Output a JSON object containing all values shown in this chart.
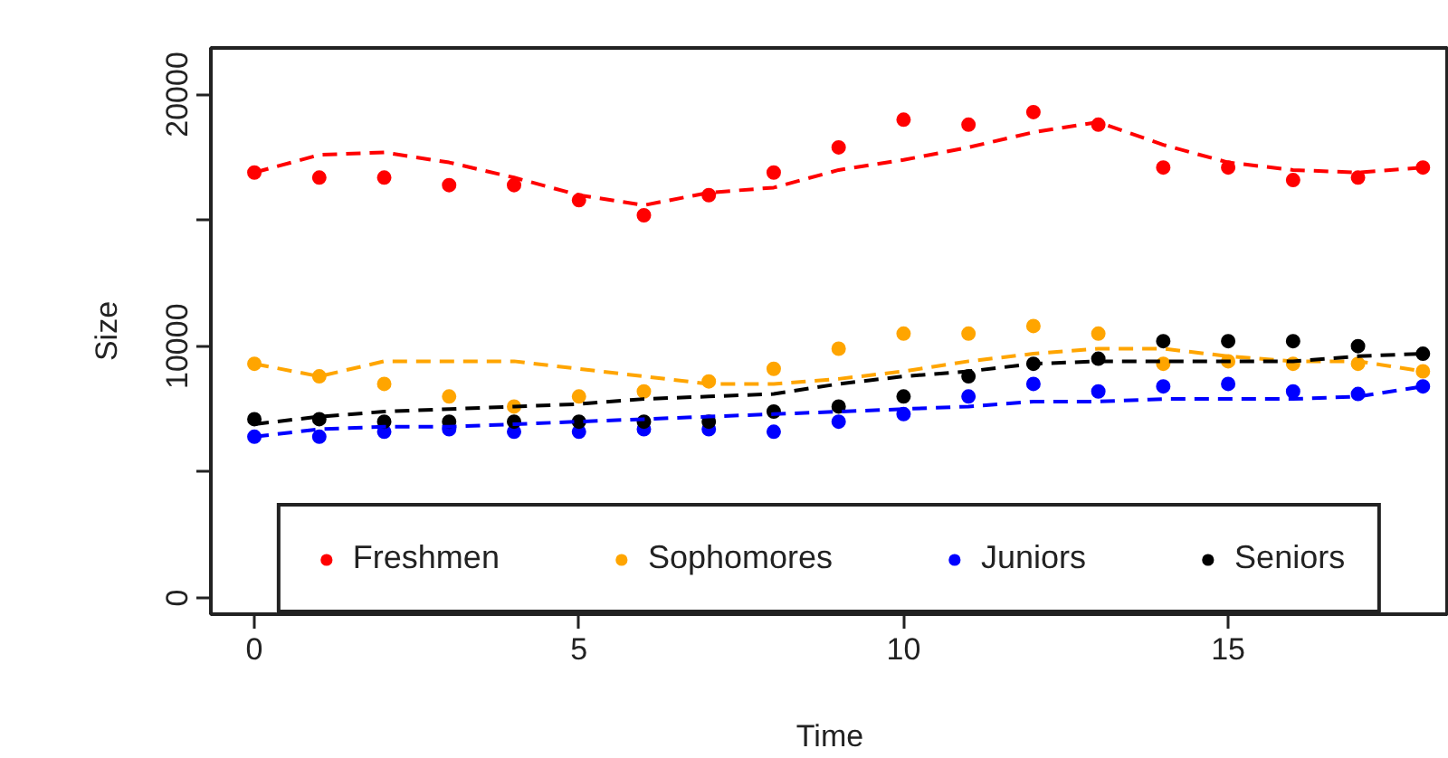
{
  "chart_data": {
    "type": "scatter",
    "xlabel": "Time",
    "ylabel": "Size",
    "x": [
      0,
      1,
      2,
      3,
      4,
      5,
      6,
      7,
      8,
      9,
      10,
      11,
      12,
      13,
      14,
      15,
      16,
      17,
      18
    ],
    "xlim": [
      -0.67,
      18.4
    ],
    "ylim": [
      -650,
      21850
    ],
    "xticks": [
      0,
      5,
      10,
      15
    ],
    "yticks": [
      0,
      {
        "value": 5000,
        "label": null
      },
      10000,
      {
        "value": 15000,
        "label": null
      },
      20000
    ],
    "grid": false,
    "legend": "bottom",
    "marker": "circle",
    "series": [
      {
        "name": "Freshmen",
        "color": "#ff0000",
        "values": [
          16900,
          16700,
          16700,
          16400,
          16400,
          15800,
          15200,
          16000,
          16900,
          17900,
          19000,
          18800,
          19300,
          18800,
          17100,
          17100,
          16600,
          16700,
          17100
        ]
      },
      {
        "name": "Sophomores",
        "color": "#ffa500",
        "values": [
          9300,
          8800,
          8500,
          8000,
          7600,
          8000,
          8200,
          8600,
          9100,
          9900,
          10500,
          10500,
          10800,
          10500,
          9300,
          9400,
          9300,
          9300,
          9000
        ]
      },
      {
        "name": "Juniors",
        "color": "#0000ff",
        "values": [
          6400,
          6400,
          6600,
          6700,
          6600,
          6600,
          6700,
          6700,
          6600,
          7000,
          7300,
          8000,
          8500,
          8200,
          8400,
          8500,
          8200,
          8100,
          8400
        ]
      },
      {
        "name": "Seniors",
        "color": "#000000",
        "values": [
          7100,
          7100,
          7000,
          7000,
          7000,
          7000,
          7000,
          7000,
          7400,
          7600,
          8000,
          8800,
          9300,
          9500,
          10200,
          10200,
          10200,
          10000,
          9700
        ]
      },
      {
        "type": "line",
        "line_style": "dashed",
        "marker": "none",
        "color": "#ff0000",
        "values": [
          16900,
          17600,
          17700,
          17300,
          16700,
          16000,
          15600,
          16100,
          16300,
          17000,
          17400,
          17900,
          18500,
          18900,
          18000,
          17300,
          17000,
          16900,
          17100
        ]
      },
      {
        "type": "line",
        "line_style": "dashed",
        "marker": "none",
        "color": "#ffa500",
        "values": [
          9300,
          8800,
          9400,
          9400,
          9400,
          9100,
          8800,
          8500,
          8500,
          8700,
          9000,
          9400,
          9700,
          9900,
          9900,
          9600,
          9400,
          9400,
          9000
        ]
      },
      {
        "type": "line",
        "line_style": "dashed",
        "marker": "none",
        "color": "#0000ff",
        "values": [
          6400,
          6700,
          6800,
          6800,
          6900,
          7000,
          7100,
          7200,
          7300,
          7400,
          7500,
          7600,
          7800,
          7800,
          7900,
          7900,
          7900,
          8000,
          8400
        ]
      },
      {
        "type": "line",
        "line_style": "dashed",
        "marker": "none",
        "color": "#000000",
        "values": [
          6900,
          7200,
          7400,
          7500,
          7600,
          7700,
          7900,
          8000,
          8100,
          8500,
          8800,
          9000,
          9300,
          9400,
          9400,
          9400,
          9400,
          9600,
          9700
        ]
      }
    ]
  }
}
